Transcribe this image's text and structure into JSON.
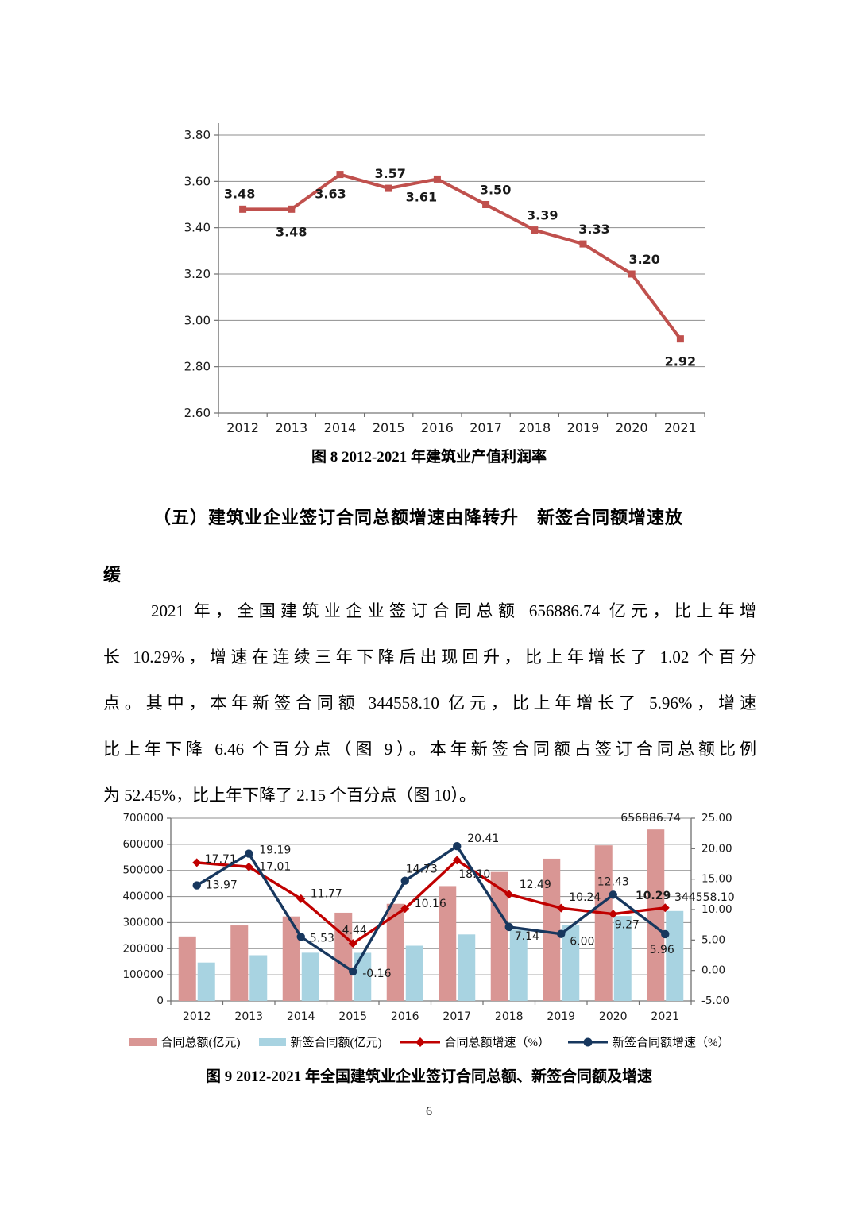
{
  "page": {
    "number": "6"
  },
  "figure8": {
    "caption": "图 8  2012-2021 年建筑业产值利润率"
  },
  "section": {
    "heading_lines": [
      "（五）建筑业企业签订合同总额增速由降转升　新签合同额增速放",
      "缓"
    ],
    "paragraph_lines": [
      "2021 年，全国建筑业企业签订合同总额 656886.74 亿元，比上年增",
      "长 10.29%，增速在连续三年下降后出现回升，比上年增长了 1.02 个百分",
      "点。其中，本年新签合同额 344558.10 亿元，比上年增长了 5.96%，增速",
      "比上年下降 6.46 个百分点（图 9）。本年新签合同额占签订合同总额比例",
      "为 52.45%，比上年下降了 2.15 个百分点（图 10）。"
    ]
  },
  "figure9": {
    "caption": "图 9 2012-2021 年全国建筑业企业签订合同总额、新签合同额及增速",
    "legend": [
      "合同总额(亿元)",
      "新签合同额(亿元)",
      "合同总额增速（%）",
      "新签合同额增速（%）"
    ]
  },
  "chart_data": [
    {
      "id": "figure8",
      "type": "line",
      "title": "图 8  2012-2021 年建筑业产值利润率",
      "categories": [
        "2012",
        "2013",
        "2014",
        "2015",
        "2016",
        "2017",
        "2018",
        "2019",
        "2020",
        "2021"
      ],
      "series": [
        {
          "name": "建筑业产值利润率",
          "values": [
            3.48,
            3.48,
            3.63,
            3.57,
            3.61,
            3.5,
            3.39,
            3.33,
            3.2,
            2.92
          ]
        }
      ],
      "ylim": [
        2.6,
        3.8
      ],
      "ytick_step": 0.2,
      "grid": true,
      "legend_position": "none",
      "colors": {
        "line": "#C0504D",
        "grid": "#8e8e8e",
        "axis": "#6f6f6f",
        "label": "#1a1a1a"
      }
    },
    {
      "id": "figure9",
      "type": "combo-bar-line",
      "title": "图 9 2012-2021 年全国建筑业企业签订合同总额、新签合同额及增速",
      "categories": [
        "2012",
        "2013",
        "2014",
        "2015",
        "2016",
        "2017",
        "2018",
        "2019",
        "2020",
        "2021"
      ],
      "bar_series": [
        {
          "name": "合同总额(亿元)",
          "axis": "left",
          "color": "#D99694",
          "values": [
            247000,
            289000,
            323500,
            338000,
            372000,
            440000,
            494000,
            545000,
            596000,
            656886.74
          ]
        },
        {
          "name": "新签合同额(亿元)",
          "axis": "left",
          "color": "#A8D3E1",
          "values": [
            147000,
            175000,
            184600,
            184300,
            211500,
            254700,
            272900,
            289200,
            325200,
            344558.1
          ]
        }
      ],
      "line_series": [
        {
          "name": "合同总额增速（%）",
          "axis": "right",
          "color": "#C00000",
          "marker": "diamond",
          "values": [
            17.71,
            17.01,
            11.77,
            4.44,
            10.16,
            18.1,
            12.49,
            10.24,
            9.27,
            10.29
          ]
        },
        {
          "name": "新签合同额增速（%）",
          "axis": "right",
          "color": "#17375E",
          "marker": "circle",
          "values": [
            13.97,
            19.19,
            5.53,
            -0.16,
            14.73,
            20.41,
            7.14,
            6.0,
            12.43,
            5.96
          ]
        }
      ],
      "left_ylim": [
        0,
        700000
      ],
      "left_ytick_step": 100000,
      "right_ylim": [
        -5.0,
        25.0
      ],
      "right_ytick_step": 5.0,
      "bar_value_labels": {
        "total_2021": "656886.74",
        "new_2021": "344558.10"
      },
      "grid": true,
      "legend_position": "bottom",
      "colors": {
        "grid": "#8e8e8e",
        "axis": "#6f6f6f",
        "label": "#1a1a1a"
      }
    }
  ]
}
